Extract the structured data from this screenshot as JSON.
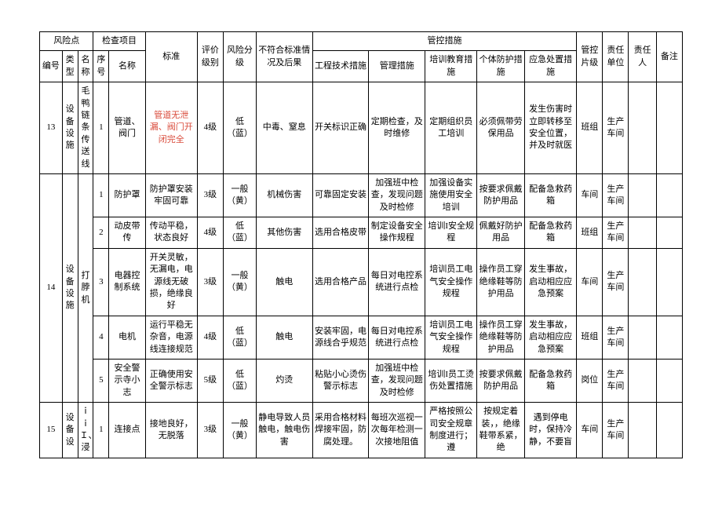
{
  "colors": {
    "text": "#000000",
    "highlight": "#d94a3a",
    "background": "#ffffff",
    "border": "#000000"
  },
  "typography": {
    "font_family": "SimSun",
    "font_size": 11,
    "line_height": 1.4
  },
  "headers": {
    "risk_point": "风险点",
    "check_item": "检查项目",
    "standard": "标准",
    "eval_level": "评价级别",
    "risk_grade": "风险分级",
    "consequence": "不符合标准情况及后果",
    "control": "管控措施",
    "control_level": "管控片级",
    "resp_unit": "责任单位",
    "resp_person": "责任人",
    "remark": "备注",
    "num": "编号",
    "type": "类型",
    "name": "名称",
    "seq": "序号",
    "item_name": "名称",
    "eng": "工程技术措施",
    "mgmt": "管理措施",
    "train": "培训教育措施",
    "ppe": "个体防护措施",
    "emerg": "应急处置措施"
  },
  "rows": [
    {
      "num": "13",
      "type": "设备设施",
      "name": "毛鸭链条传送线",
      "seq": "1",
      "item": "管道、阀门",
      "std": "管道无泄漏、阀门开闭完全",
      "std_red": true,
      "eval": "4级",
      "risk": "低（蓝）",
      "cons": "中毒、窒息",
      "eng": "开关标识正确",
      "mgmt": "定期检查，及时维修",
      "train": "定期组织员工培训",
      "ppe": "必须佩带劳保用品",
      "emerg": "发生伤害时立即转移至安全位置，并及时就医",
      "level": "班组",
      "unit": "生产车间"
    },
    {
      "num": "14",
      "type": "设备设施",
      "name": "打脖机",
      "rowspan": 5,
      "seq": "1",
      "item": "防护罩",
      "std": "防护罩安装牢固可靠",
      "eval": "3级",
      "risk": "一般（黄）",
      "cons": "机械伤害",
      "eng": "可靠固定安装",
      "mgmt": "加强班中检查，发现问题及时检修",
      "train": "加强设备实施使用安全培训",
      "ppe": "按要求佩戴防护用品",
      "emerg": "配备急救药箱",
      "level": "车间",
      "unit": "生产车间"
    },
    {
      "seq": "2",
      "item": "动皮带传",
      "std": "传动平稳，状态良好",
      "eval": "4级",
      "risk": "低（蓝）",
      "cons": "其他伤害",
      "eng": "选用合格皮带",
      "mgmt": "制定设备安全操作规程",
      "train": "培训I安全规程",
      "ppe": "佩戴好防护用品",
      "emerg": "配备急救药箱",
      "level": "班组",
      "unit": "生产车间"
    },
    {
      "seq": "3",
      "item": "电器控制系统",
      "std": "开关灵敏，无漏电，电源线无破损，绝缘良好",
      "eval": "3级",
      "risk": "一般（黄）",
      "cons": "触电",
      "eng": "选用合格产品",
      "mgmt": "每日对电控系统进行点检",
      "train": "培训员工电气安全操作规程",
      "ppe": "操作员工穿绝缘鞋等防护用品",
      "emerg": "发生事故，启动相应应急预案",
      "level": "车间",
      "unit": "生产车间"
    },
    {
      "seq": "4",
      "item": "电机",
      "std": "运行平稳无杂音，电源线连接规范",
      "eval": "4级",
      "risk": "低（蓝）",
      "cons": "触电",
      "eng": "安装牢固，电源线合乎规范",
      "mgmt": "每日对电控系统进行点检",
      "train": "培训员工电气安全操作规程",
      "ppe": "操作员工穿绝缘鞋等防护用品",
      "emerg": "发生事故，启动相应应急预案",
      "level": "班组",
      "unit": "生产车间"
    },
    {
      "seq": "5",
      "item": "安全警示寺小志",
      "std": "正确使用安全警示标志",
      "eval": "5级",
      "risk": "低（蓝）",
      "cons": "灼烫",
      "eng": "粘贴小心烫伤警示标志",
      "mgmt": "加强班中检查，发现问题及时检修",
      "train": "培训I员工烫伤处置措施",
      "ppe": "按要求佩戴防护用品",
      "emerg": "配备急救药箱",
      "level": "岗位",
      "unit": "生产车间"
    },
    {
      "num": "15",
      "type": "设备设",
      "name": "ｉｉＩ、浸",
      "seq": "1",
      "item": "连接点",
      "std": "接地良好，无脱落",
      "eval": "3级",
      "risk": "一般（黄）",
      "cons": "静电导致人员触电，触电伤害",
      "eng": "采用合格材料焊接牢固，防腐处理。",
      "mgmt": "每班次巡视一次每年检测一次接地阻值",
      "train": "严格按照公司安全规章制度进行；遵",
      "ppe": "按规定着装，，绝缘鞋带系紧，绝",
      "emerg": "遇到停电时，保持冷静，不要盲",
      "level": "车间",
      "unit": "生产车间"
    }
  ]
}
